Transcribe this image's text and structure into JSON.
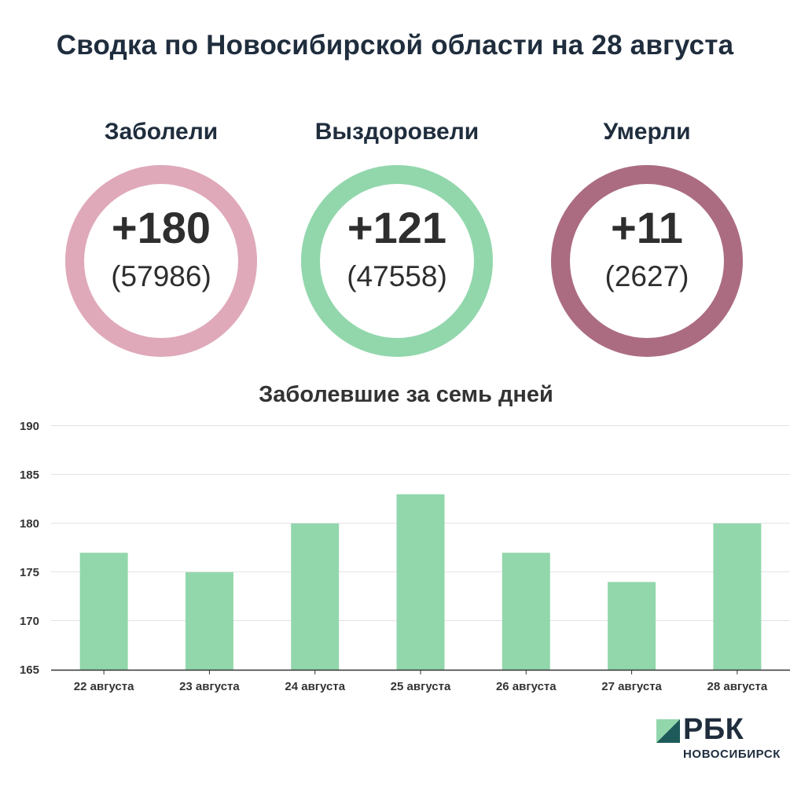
{
  "title": "Сводка по Новосибирской области на 28 августа",
  "stats": [
    {
      "label": "Заболели",
      "delta": "+180",
      "total": "(57986)",
      "ring_color": "#dfa9b9"
    },
    {
      "label": "Выздоровели",
      "delta": "+121",
      "total": "(47558)",
      "ring_color": "#92d7ac"
    },
    {
      "label": "Умерли",
      "delta": "+11",
      "total": "(2627)",
      "ring_color": "#ab6c81"
    }
  ],
  "chart_data": {
    "type": "bar",
    "title": "Заболевшие за семь дней",
    "categories": [
      "22 августа",
      "23 августа",
      "24 августа",
      "25 августа",
      "26 августа",
      "27 августа",
      "28 августа"
    ],
    "values": [
      177,
      175,
      180,
      183,
      177,
      174,
      180
    ],
    "ylim": [
      165,
      190
    ],
    "yticks": [
      165,
      170,
      175,
      180,
      185,
      190
    ],
    "grid": true,
    "bar_color": "#92d7ac"
  },
  "logo": {
    "text": "РБК",
    "subtext": "НОВОСИБИРСК",
    "mark_colors": [
      "#92d7ac",
      "#1f5a5a"
    ]
  }
}
